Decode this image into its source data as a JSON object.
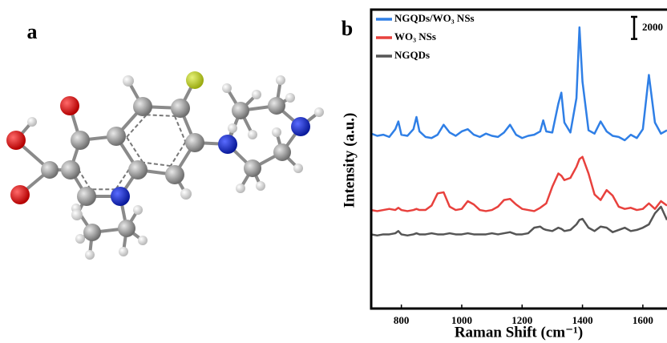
{
  "panel_labels": [
    "a",
    "b"
  ],
  "chart_data": {
    "type": "line",
    "xlabel": "Raman Shift (cm⁻¹)",
    "ylabel": "Intensity (a.u.)",
    "x": [
      700,
      720,
      740,
      760,
      780,
      790,
      800,
      820,
      840,
      850,
      860,
      880,
      900,
      920,
      940,
      960,
      980,
      1000,
      1020,
      1040,
      1060,
      1080,
      1100,
      1120,
      1140,
      1160,
      1180,
      1200,
      1220,
      1240,
      1260,
      1270,
      1280,
      1300,
      1320,
      1330,
      1340,
      1360,
      1380,
      1390,
      1400,
      1420,
      1440,
      1460,
      1480,
      1500,
      1520,
      1540,
      1560,
      1580,
      1600,
      1620,
      1640,
      1660,
      1680
    ],
    "xlim": [
      700,
      1680
    ],
    "xticks": [
      800,
      1000,
      1200,
      1400,
      1600
    ],
    "ylim": [
      0,
      27000
    ],
    "scale_bar": 2000,
    "legend": "upper left",
    "series": [
      {
        "name": "NGQDs/WO₃ NSs",
        "color": "#2f7fe6",
        "values": [
          15800,
          15600,
          15700,
          15500,
          16200,
          16900,
          15700,
          15600,
          16200,
          17300,
          16000,
          15500,
          15400,
          15700,
          16600,
          15900,
          15600,
          16000,
          16200,
          15700,
          15500,
          15800,
          15600,
          15500,
          15900,
          16600,
          15700,
          15400,
          15600,
          15700,
          16000,
          17000,
          16000,
          15900,
          18500,
          19500,
          16800,
          15900,
          19000,
          25400,
          20500,
          16100,
          15800,
          16900,
          16000,
          15600,
          15500,
          15200,
          15700,
          15400,
          16200,
          21100,
          16800,
          15800,
          16100
        ]
      },
      {
        "name": "WO₃ NSs",
        "color": "#e8413d",
        "values": [
          8900,
          8800,
          8900,
          9000,
          8900,
          9100,
          8900,
          8800,
          8900,
          9000,
          8900,
          8900,
          9300,
          10400,
          10500,
          9200,
          8900,
          9000,
          9700,
          9400,
          8900,
          8800,
          8900,
          9200,
          9800,
          9900,
          9400,
          9000,
          8900,
          8800,
          9100,
          9300,
          9500,
          11000,
          12200,
          12000,
          11600,
          11800,
          12800,
          13500,
          13700,
          12200,
          10300,
          9800,
          10700,
          10200,
          9200,
          9000,
          9100,
          8900,
          9000,
          9500,
          9000,
          9700,
          9300
        ]
      },
      {
        "name": "NGQDs",
        "color": "#555555",
        "values": [
          6700,
          6600,
          6700,
          6700,
          6800,
          7000,
          6700,
          6600,
          6700,
          6800,
          6700,
          6700,
          6800,
          6700,
          6700,
          6800,
          6700,
          6700,
          6800,
          6700,
          6700,
          6700,
          6800,
          6700,
          6800,
          6900,
          6700,
          6700,
          6800,
          7300,
          7400,
          7200,
          7100,
          7000,
          7300,
          7200,
          7000,
          7100,
          7600,
          8000,
          8100,
          7300,
          7000,
          7400,
          7300,
          6900,
          7100,
          7300,
          7000,
          7100,
          7300,
          7600,
          8600,
          9200,
          8000
        ]
      }
    ]
  }
}
